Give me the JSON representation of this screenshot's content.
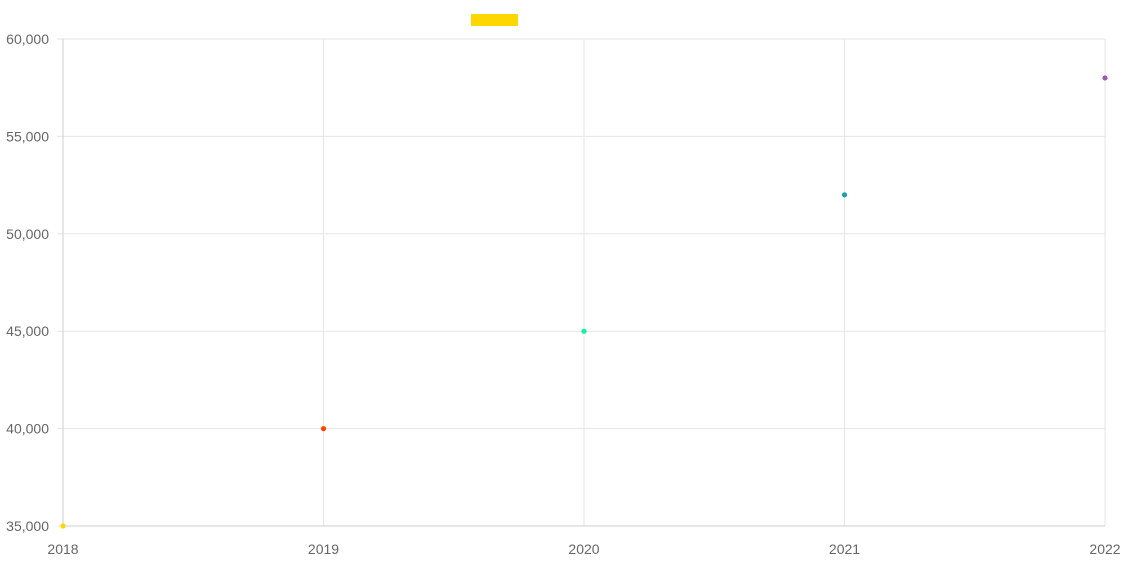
{
  "chart_data": {
    "type": "scatter",
    "title": "",
    "xlabel": "",
    "ylabel": "",
    "x": [
      2018,
      2019,
      2020,
      2021,
      2022
    ],
    "xlim": [
      2018,
      2022
    ],
    "ylim": [
      35000,
      60000
    ],
    "x_ticks": [
      "2018",
      "2019",
      "2020",
      "2021",
      "2022"
    ],
    "y_ticks": [
      "35,000",
      "40,000",
      "45,000",
      "50,000",
      "55,000",
      "60,000"
    ],
    "grid": true,
    "legend": {
      "placement": "top-center",
      "swatch_color": "#ffd700",
      "label": ""
    },
    "points": [
      {
        "x": 2018,
        "y": 35000,
        "color": "#ffd700"
      },
      {
        "x": 2019,
        "y": 40000,
        "color": "#ff4500"
      },
      {
        "x": 2020,
        "y": 45000,
        "color": "#00fa9a"
      },
      {
        "x": 2021,
        "y": 52000,
        "color": "#1e9fb0"
      },
      {
        "x": 2022,
        "y": 58000,
        "color": "#9b59b6"
      }
    ]
  }
}
